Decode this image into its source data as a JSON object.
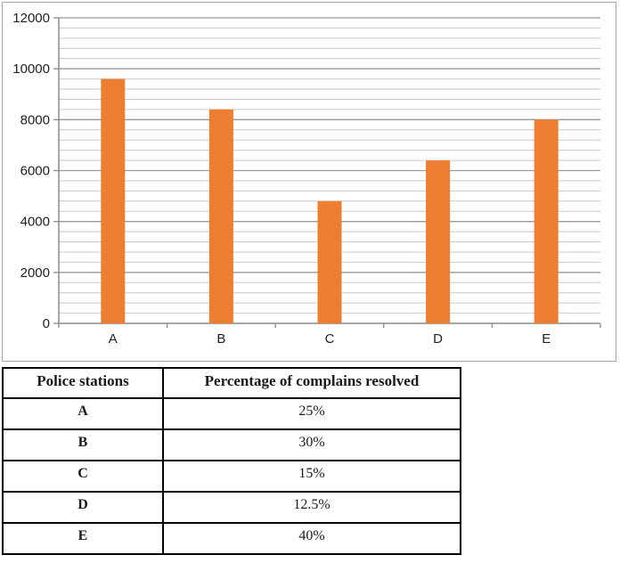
{
  "chart_data": {
    "type": "bar",
    "title": "",
    "xlabel": "",
    "ylabel": "",
    "categories": [
      "A",
      "B",
      "C",
      "D",
      "E"
    ],
    "values": [
      9600,
      8400,
      4800,
      6400,
      8000
    ],
    "ylim": [
      0,
      12000
    ],
    "y_major_step": 2000,
    "y_minor_step": 400,
    "y_tick_labels": [
      "0",
      "2000",
      "4000",
      "6000",
      "8000",
      "10000",
      "12000"
    ],
    "grid": "on",
    "legend": "none",
    "bar_color": "#ED7D31",
    "axis_color": "#8a8a8a",
    "major_grid_color": "#9a9a9a",
    "minor_grid_color": "#c9c9c9",
    "border_color": "#a6a6a6",
    "label_color": "#1f1f1f"
  },
  "table": {
    "headers": [
      "Police stations",
      "Percentage of complains resolved"
    ],
    "rows": [
      {
        "station": "A",
        "percent": "25%"
      },
      {
        "station": "B",
        "percent": "30%"
      },
      {
        "station": "C",
        "percent": "15%"
      },
      {
        "station": "D",
        "percent": "12.5%"
      },
      {
        "station": "E",
        "percent": "40%"
      }
    ]
  }
}
